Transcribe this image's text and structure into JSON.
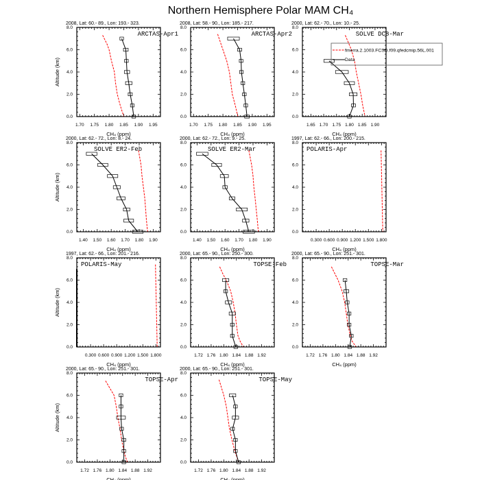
{
  "title": "Northern Hemisphere Polar MAM CH₄",
  "ylabel": "Altitude (km)",
  "xlabel": "CH₄ (ppm)",
  "y_ticks": [
    "0.0",
    "2.0",
    "4.0",
    "6.0",
    "8.0"
  ],
  "legend": {
    "model_label": "fmerra.2.1003.FCSD.f09.qfedcmip.56L.001",
    "data_label": "Data"
  },
  "colors": {
    "model": "#ff0000",
    "data": "#000000"
  },
  "chart_data": [
    {
      "type": "line",
      "name": "ARCTAS-Apr1",
      "header": "2008, Lat:  60.- 89., Lon: 193.- 323.",
      "xlim": [
        1.69,
        1.975
      ],
      "ylim": [
        0,
        8
      ],
      "xticks": [
        1.7,
        1.75,
        1.8,
        1.85,
        1.9,
        1.95
      ],
      "xtick_labels": [
        "1.70",
        "1.75",
        "1.80",
        "1.85",
        "1.90",
        "1.95"
      ],
      "model": {
        "alt": [
          7.3,
          6.5,
          6,
          5,
          4,
          3,
          2,
          1,
          0
        ],
        "ch4": [
          1.778,
          1.793,
          1.8,
          1.808,
          1.818,
          1.822,
          1.828,
          1.838,
          1.85
        ]
      },
      "data": {
        "alt": [
          7,
          6,
          5,
          4,
          3,
          2,
          1,
          0
        ],
        "ch4": [
          1.843,
          1.857,
          1.859,
          1.861,
          1.867,
          1.872,
          1.879,
          1.884
        ],
        "err": [
          0.006,
          0.008,
          0.005,
          0.009,
          0.011,
          0.007,
          0.006,
          0.004
        ]
      }
    },
    {
      "type": "line",
      "name": "ARCTAS-Apr2",
      "header": "2008, Lat:  58.- 90., Lon: 185.- 217.",
      "xlim": [
        1.69,
        1.975
      ],
      "ylim": [
        0,
        8
      ],
      "xticks": [
        1.7,
        1.75,
        1.8,
        1.85,
        1.9,
        1.95
      ],
      "xtick_labels": [
        "1.70",
        "1.75",
        "1.80",
        "1.85",
        "1.90",
        "1.95"
      ],
      "model": {
        "alt": [
          7.4,
          6,
          5,
          4,
          3,
          2,
          1,
          0
        ],
        "ch4": [
          1.782,
          1.8,
          1.813,
          1.822,
          1.827,
          1.832,
          1.842,
          1.851
        ]
      },
      "data": {
        "alt": [
          7,
          6,
          5,
          4,
          3,
          2,
          1,
          0
        ],
        "ch4": [
          1.836,
          1.857,
          1.862,
          1.863,
          1.868,
          1.873,
          1.878,
          1.882
        ],
        "err": [
          0.02,
          0.007,
          0.006,
          0.005,
          0.006,
          0.005,
          0.004,
          0.008
        ]
      }
    },
    {
      "type": "line",
      "name": "SOLVE DC8-Mar",
      "header": "2000, Lat: 62.- 70., Lon: 10.- 25.",
      "xlim": [
        1.617,
        1.943
      ],
      "ylim": [
        0,
        8
      ],
      "xticks": [
        1.65,
        1.7,
        1.75,
        1.8,
        1.85,
        1.9
      ],
      "xtick_labels": [
        "1.65",
        "1.70",
        "1.75",
        "1.80",
        "1.85",
        "1.90"
      ],
      "model": {
        "alt": [
          7.3,
          6,
          5,
          4,
          3,
          2,
          1,
          0
        ],
        "ch4": [
          1.784,
          1.808,
          1.82,
          1.827,
          1.836,
          1.845,
          1.852,
          1.861
        ]
      },
      "data": {
        "alt": [
          5,
          4,
          3,
          2,
          1,
          0
        ],
        "ch4": [
          1.721,
          1.771,
          1.8,
          1.815,
          1.816,
          1.8
        ],
        "err": [
          0.02,
          0.025,
          0.02,
          0.015,
          0.008,
          0.0
        ]
      }
    },
    {
      "type": "line",
      "name": "SOLVE ER2-Feb",
      "header": "2000, Lat: 62.- 72., Lon: 8.- 24.",
      "xlim": [
        1.354,
        1.952
      ],
      "ylim": [
        0,
        8
      ],
      "xticks": [
        1.4,
        1.5,
        1.6,
        1.7,
        1.8,
        1.9
      ],
      "xtick_labels": [
        "1.40",
        "1.50",
        "1.60",
        "1.70",
        "1.80",
        "1.90"
      ],
      "model": {
        "alt": [
          7.3,
          6,
          5,
          4,
          3,
          2,
          1,
          0
        ],
        "ch4": [
          1.795,
          1.813,
          1.82,
          1.83,
          1.84,
          1.846,
          1.852,
          1.86
        ]
      },
      "data": {
        "alt": [
          7,
          6,
          5,
          4,
          3,
          2,
          1,
          0
        ],
        "ch4": [
          1.46,
          1.54,
          1.61,
          1.64,
          1.67,
          1.71,
          1.725,
          1.79
        ],
        "err": [
          0.038,
          0.036,
          0.037,
          0.025,
          0.029,
          0.023,
          0.035,
          0.038
        ]
      }
    },
    {
      "type": "line",
      "name": "SOLVE ER2-Mar",
      "header": "2000, Lat: 62.- 72., Lon: 9.- 25.",
      "xlim": [
        1.354,
        1.952
      ],
      "ylim": [
        0,
        8
      ],
      "xticks": [
        1.4,
        1.5,
        1.6,
        1.7,
        1.8,
        1.9
      ],
      "xtick_labels": [
        "1.40",
        "1.50",
        "1.60",
        "1.70",
        "1.80",
        "1.90"
      ],
      "model": {
        "alt": [
          7.3,
          6,
          5,
          4,
          3,
          2,
          1,
          0
        ],
        "ch4": [
          1.77,
          1.79,
          1.8,
          1.806,
          1.815,
          1.823,
          1.831,
          1.838
        ]
      },
      "data": {
        "alt": [
          7,
          6,
          5,
          4,
          3,
          2,
          1,
          0
        ],
        "ch4": [
          1.437,
          1.54,
          1.595,
          1.6,
          1.65,
          1.72,
          1.748,
          1.77
        ],
        "err": [
          0.041,
          0.035,
          0.029,
          0.016,
          0.02,
          0.039,
          0.023,
          0.041
        ]
      }
    },
    {
      "type": "line",
      "name": "POLARIS-Apr",
      "header": "1997, Lat: 62.- 66., Lon: 200.- 215.",
      "xlim": [
        -0.016,
        1.905
      ],
      "ylim": [
        0,
        8
      ],
      "xticks": [
        0.3,
        0.6,
        0.9,
        1.2,
        1.5,
        1.8
      ],
      "xtick_labels": [
        "0.300",
        "0.600",
        "0.900",
        "1.200",
        "1.500",
        "1.800"
      ],
      "model": {
        "alt": [
          7.3,
          0
        ],
        "ch4": [
          1.79,
          1.83
        ]
      },
      "data": {
        "alt": [],
        "ch4": [],
        "err": []
      }
    },
    {
      "type": "line",
      "name": "POLARIS-May",
      "header": "1997, Lat: 62.- 66., Lon: 201.- 216.",
      "xlim": [
        -0.016,
        1.905
      ],
      "ylim": [
        0,
        8
      ],
      "xticks": [
        0.3,
        0.6,
        0.9,
        1.2,
        1.5,
        1.8
      ],
      "xtick_labels": [
        "0.300",
        "0.600",
        "0.900",
        "1.200",
        "1.500",
        "1.800"
      ],
      "model": {
        "alt": [
          7.4,
          0
        ],
        "ch4": [
          1.79,
          1.83
        ]
      },
      "data": {
        "alt": [
          7,
          0
        ],
        "ch4": [
          -0.016,
          -0.016
        ],
        "err": [
          0,
          0
        ]
      }
    },
    {
      "type": "line",
      "name": "TOPSE-Feb",
      "header": "2000, Lat: 65.- 90., Lon: 250.- 300.",
      "xlim": [
        1.695,
        1.96
      ],
      "ylim": [
        0,
        8
      ],
      "xticks": [
        1.72,
        1.76,
        1.8,
        1.84,
        1.88,
        1.92
      ],
      "xtick_labels": [
        "1.72",
        "1.76",
        "1.80",
        "1.84",
        "1.88",
        "1.92"
      ],
      "model": {
        "alt": [
          7.2,
          6.5,
          6,
          5,
          4,
          3,
          2,
          1,
          0.5,
          0
        ],
        "ch4": [
          1.787,
          1.798,
          1.808,
          1.822,
          1.83,
          1.836,
          1.84,
          1.845,
          1.852,
          1.862
        ]
      },
      "data": {
        "alt": [
          6,
          5,
          4,
          3,
          2,
          1,
          0
        ],
        "ch4": [
          1.806,
          1.806,
          1.815,
          1.827,
          1.827,
          1.827,
          1.838
        ],
        "err": [
          0.01,
          0.006,
          0.01,
          0.01,
          0.005,
          0.005,
          0.005
        ]
      }
    },
    {
      "type": "line",
      "name": "TOPSE-Mar",
      "header": "2000, Lat: 65.- 90., Lon: 251.- 301.",
      "xlim": [
        1.695,
        1.96
      ],
      "ylim": [
        0,
        8
      ],
      "xticks": [
        1.72,
        1.76,
        1.8,
        1.84,
        1.88,
        1.92
      ],
      "xtick_labels": [
        "1.72",
        "1.76",
        "1.80",
        "1.84",
        "1.88",
        "1.92"
      ],
      "model": {
        "alt": [
          7.2,
          6,
          5,
          4,
          3,
          2,
          1,
          0.5,
          0
        ],
        "ch4": [
          1.787,
          1.808,
          1.821,
          1.829,
          1.834,
          1.839,
          1.847,
          1.853,
          1.865
        ]
      },
      "data": {
        "alt": [
          6,
          5,
          4,
          3,
          2,
          1,
          0
        ],
        "ch4": [
          1.83,
          1.834,
          1.837,
          1.843,
          1.843,
          1.85,
          1.845
        ],
        "err": [
          0.005,
          0.008,
          0.005,
          0.005,
          0.005,
          0.005,
          0.003
        ]
      }
    },
    {
      "type": "line",
      "name": "TOPSE-Apr",
      "header": "2000, Lat: 65.- 90., Lon: 251.- 301.",
      "xlim": [
        1.695,
        1.96
      ],
      "ylim": [
        0,
        8
      ],
      "xticks": [
        1.72,
        1.76,
        1.8,
        1.84,
        1.88,
        1.92
      ],
      "xtick_labels": [
        "1.72",
        "1.76",
        "1.80",
        "1.84",
        "1.88",
        "1.92"
      ],
      "model": {
        "alt": [
          7.3,
          6,
          5,
          4,
          3,
          2,
          1,
          0.5,
          0
        ],
        "ch4": [
          1.786,
          1.813,
          1.82,
          1.825,
          1.832,
          1.837,
          1.844,
          1.849,
          1.855
        ]
      },
      "data": {
        "alt": [
          6,
          5,
          4,
          3,
          2,
          1,
          0
        ],
        "ch4": [
          1.835,
          1.835,
          1.835,
          1.837,
          1.844,
          1.844,
          1.844
        ],
        "err": [
          0.005,
          0.005,
          0.014,
          0.005,
          0.005,
          0.005,
          0.005
        ]
      }
    },
    {
      "type": "line",
      "name": "TOPSE-May",
      "header": "2000, Lat: 65.- 90., Lon: 251.- 301.",
      "xlim": [
        1.695,
        1.96
      ],
      "ylim": [
        0,
        8
      ],
      "xticks": [
        1.72,
        1.76,
        1.8,
        1.84,
        1.88,
        1.92
      ],
      "xtick_labels": [
        "1.72",
        "1.76",
        "1.80",
        "1.84",
        "1.88",
        "1.92"
      ],
      "model": {
        "alt": [
          7.4,
          6,
          5,
          4,
          3,
          2,
          1,
          0
        ],
        "ch4": [
          1.785,
          1.8,
          1.808,
          1.813,
          1.818,
          1.826,
          1.835,
          1.847
        ]
      },
      "data": {
        "alt": [
          6,
          5,
          4,
          3,
          2,
          1,
          0
        ],
        "ch4": [
          1.828,
          1.837,
          1.837,
          1.828,
          1.837,
          1.837,
          1.847
        ],
        "err": [
          0.01,
          0.005,
          0.01,
          0.005,
          0.005,
          0.005,
          0.004
        ]
      }
    }
  ]
}
